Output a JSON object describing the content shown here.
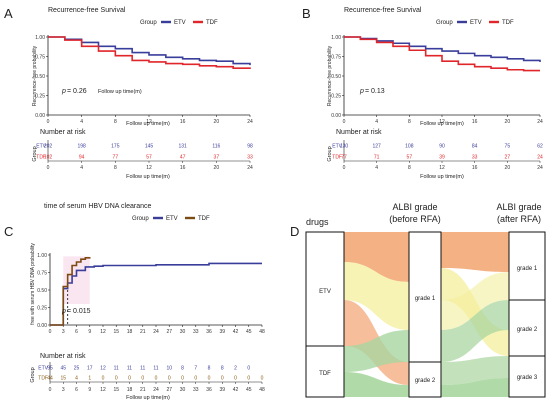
{
  "colors": {
    "etv": "#3a3e9b",
    "tdf": "#e0262a",
    "tdf_c": "#7d4a12",
    "axis": "#222222",
    "text": "#333333",
    "sankey_etv": "#f2a36f",
    "sankey_tdf": "#a9d6a0",
    "sankey_mix": "#f4ef9c"
  },
  "panels": {
    "A": {
      "letter": "A",
      "title": "Recurrence-free Survival",
      "legend_group": "Group",
      "legend_etv": "ETV",
      "legend_tdf": "TDF",
      "ylabel": "Recurrence-free probability",
      "xlabel": "Follow up time(m)",
      "p_label": "p",
      "p_value": " = 0.26",
      "followup_label": "Follow up time(m)",
      "nar_title": "Number at risk",
      "nar_ylabel": "Group",
      "nar_xlabel": "Follow up time(m)"
    },
    "B": {
      "letter": "B",
      "title": "Recurrence-free Survival",
      "legend_group": "Group",
      "legend_etv": "ETV",
      "legend_tdf": "TDF",
      "ylabel": "Recurrence-free probability",
      "xlabel": "Follow up time(m)",
      "p_label": "p",
      "p_value": " = 0.13",
      "nar_title": "Number at risk",
      "nar_ylabel": "Group",
      "nar_xlabel": "Follow up time(m)"
    },
    "C": {
      "letter": "C",
      "title": "time of serum HBV DNA clearance",
      "legend_group": "Group",
      "legend_etv": "ETV",
      "legend_tdf": "TDF",
      "ylabel": "free with serum HBV DNA probability",
      "p_label": "p",
      "p_value": " = 0.015",
      "nar_title": "Number at risk",
      "nar_ylabel": "Group",
      "nar_xlabel": "Follow up time(m)"
    },
    "D": {
      "letter": "D",
      "col1": "drugs",
      "col2a": "ALBI grade",
      "col2b": "(before RFA)",
      "col3a": "ALBI grade",
      "col3b": "(after RFA)",
      "n_etv": "ETV",
      "n_tdf": "TDF",
      "n_b1": "grade 1",
      "n_b2": "grade 2",
      "n_a1": "grade 1",
      "n_a2": "grade 2",
      "n_a3": "grade 3"
    }
  },
  "chart_data": [
    {
      "panel": "A",
      "type": "line",
      "title": "Recurrence-free Survival",
      "xlabel": "Follow up time(m)",
      "ylabel": "Recurrence-free probability",
      "xlim": [
        0,
        24
      ],
      "ylim": [
        0,
        1
      ],
      "xticks": [
        0,
        4,
        8,
        12,
        16,
        20,
        24
      ],
      "yticks": [
        0,
        0.25,
        0.5,
        0.75,
        1.0
      ],
      "series": [
        {
          "name": "ETV",
          "x": [
            0,
            2,
            4,
            6,
            8,
            10,
            12,
            14,
            16,
            18,
            20,
            22,
            24
          ],
          "y": [
            1.0,
            0.97,
            0.93,
            0.88,
            0.85,
            0.8,
            0.77,
            0.74,
            0.72,
            0.7,
            0.69,
            0.66,
            0.64
          ]
        },
        {
          "name": "TDF",
          "x": [
            0,
            2,
            4,
            6,
            8,
            10,
            12,
            14,
            16,
            18,
            20,
            22,
            24
          ],
          "y": [
            1.0,
            0.96,
            0.88,
            0.82,
            0.76,
            0.7,
            0.68,
            0.66,
            0.65,
            0.63,
            0.62,
            0.6,
            0.59
          ]
        }
      ],
      "at_risk": {
        "times": [
          0,
          4,
          8,
          12,
          16,
          20,
          24
        ],
        "ETV": [
          202,
          198,
          175,
          145,
          131,
          116,
          98
        ],
        "TDF": [
          102,
          94,
          77,
          57,
          47,
          37,
          33
        ]
      }
    },
    {
      "panel": "B",
      "type": "line",
      "title": "Recurrence-free Survival",
      "xlabel": "Follow up time(m)",
      "ylabel": "Recurrence-free probability",
      "xlim": [
        0,
        24
      ],
      "ylim": [
        0,
        1
      ],
      "xticks": [
        0,
        4,
        8,
        12,
        16,
        20,
        24
      ],
      "yticks": [
        0,
        0.25,
        0.5,
        0.75,
        1.0
      ],
      "series": [
        {
          "name": "ETV",
          "x": [
            0,
            2,
            4,
            6,
            8,
            10,
            12,
            14,
            16,
            18,
            20,
            22,
            24
          ],
          "y": [
            1.0,
            0.98,
            0.95,
            0.92,
            0.88,
            0.85,
            0.82,
            0.79,
            0.76,
            0.74,
            0.72,
            0.7,
            0.68
          ]
        },
        {
          "name": "TDF",
          "x": [
            0,
            2,
            4,
            6,
            8,
            10,
            12,
            14,
            16,
            18,
            20,
            22,
            24
          ],
          "y": [
            1.0,
            0.97,
            0.93,
            0.88,
            0.83,
            0.76,
            0.69,
            0.65,
            0.62,
            0.6,
            0.58,
            0.57,
            0.57
          ]
        }
      ],
      "at_risk": {
        "times": [
          0,
          4,
          8,
          12,
          16,
          20,
          24
        ],
        "ETV": [
          130,
          127,
          108,
          90,
          84,
          75,
          62
        ],
        "TDF": [
          77,
          71,
          57,
          39,
          33,
          27,
          24
        ]
      }
    },
    {
      "panel": "C",
      "type": "line",
      "title": "time of serum HBV DNA clearance",
      "xlabel": "Follow up time(m)",
      "ylabel": "free with serum HBV DNA probability",
      "xlim": [
        0,
        48
      ],
      "ylim": [
        0,
        1
      ],
      "xticks": [
        0,
        3,
        6,
        9,
        12,
        15,
        18,
        21,
        24,
        27,
        30,
        33,
        36,
        39,
        42,
        45,
        48
      ],
      "yticks": [
        0,
        0.25,
        0.5,
        0.75,
        1.0
      ],
      "series": [
        {
          "name": "ETV",
          "x": [
            0,
            3,
            4,
            5,
            6,
            8,
            10,
            12,
            24,
            36,
            48
          ],
          "y": [
            0,
            0.52,
            0.6,
            0.7,
            0.78,
            0.83,
            0.84,
            0.85,
            0.86,
            0.88,
            0.88
          ]
        },
        {
          "name": "TDF",
          "x": [
            0,
            3,
            4,
            5,
            6,
            7,
            8,
            9
          ],
          "y": [
            0,
            0.55,
            0.72,
            0.85,
            0.9,
            0.94,
            0.96,
            0.97
          ]
        }
      ],
      "at_risk": {
        "times": [
          0,
          3,
          6,
          9,
          12,
          15,
          18,
          21,
          24,
          27,
          30,
          33,
          36,
          39,
          42,
          45,
          48
        ],
        "ETV": [
          95,
          45,
          25,
          17,
          12,
          11,
          11,
          11,
          11,
          10,
          8,
          7,
          8,
          8,
          2,
          0,
          ""
        ],
        "TDF": [
          44,
          15,
          4,
          1,
          0,
          0,
          0,
          0,
          0,
          0,
          0,
          0,
          0,
          0,
          0,
          0,
          0
        ]
      }
    }
  ]
}
